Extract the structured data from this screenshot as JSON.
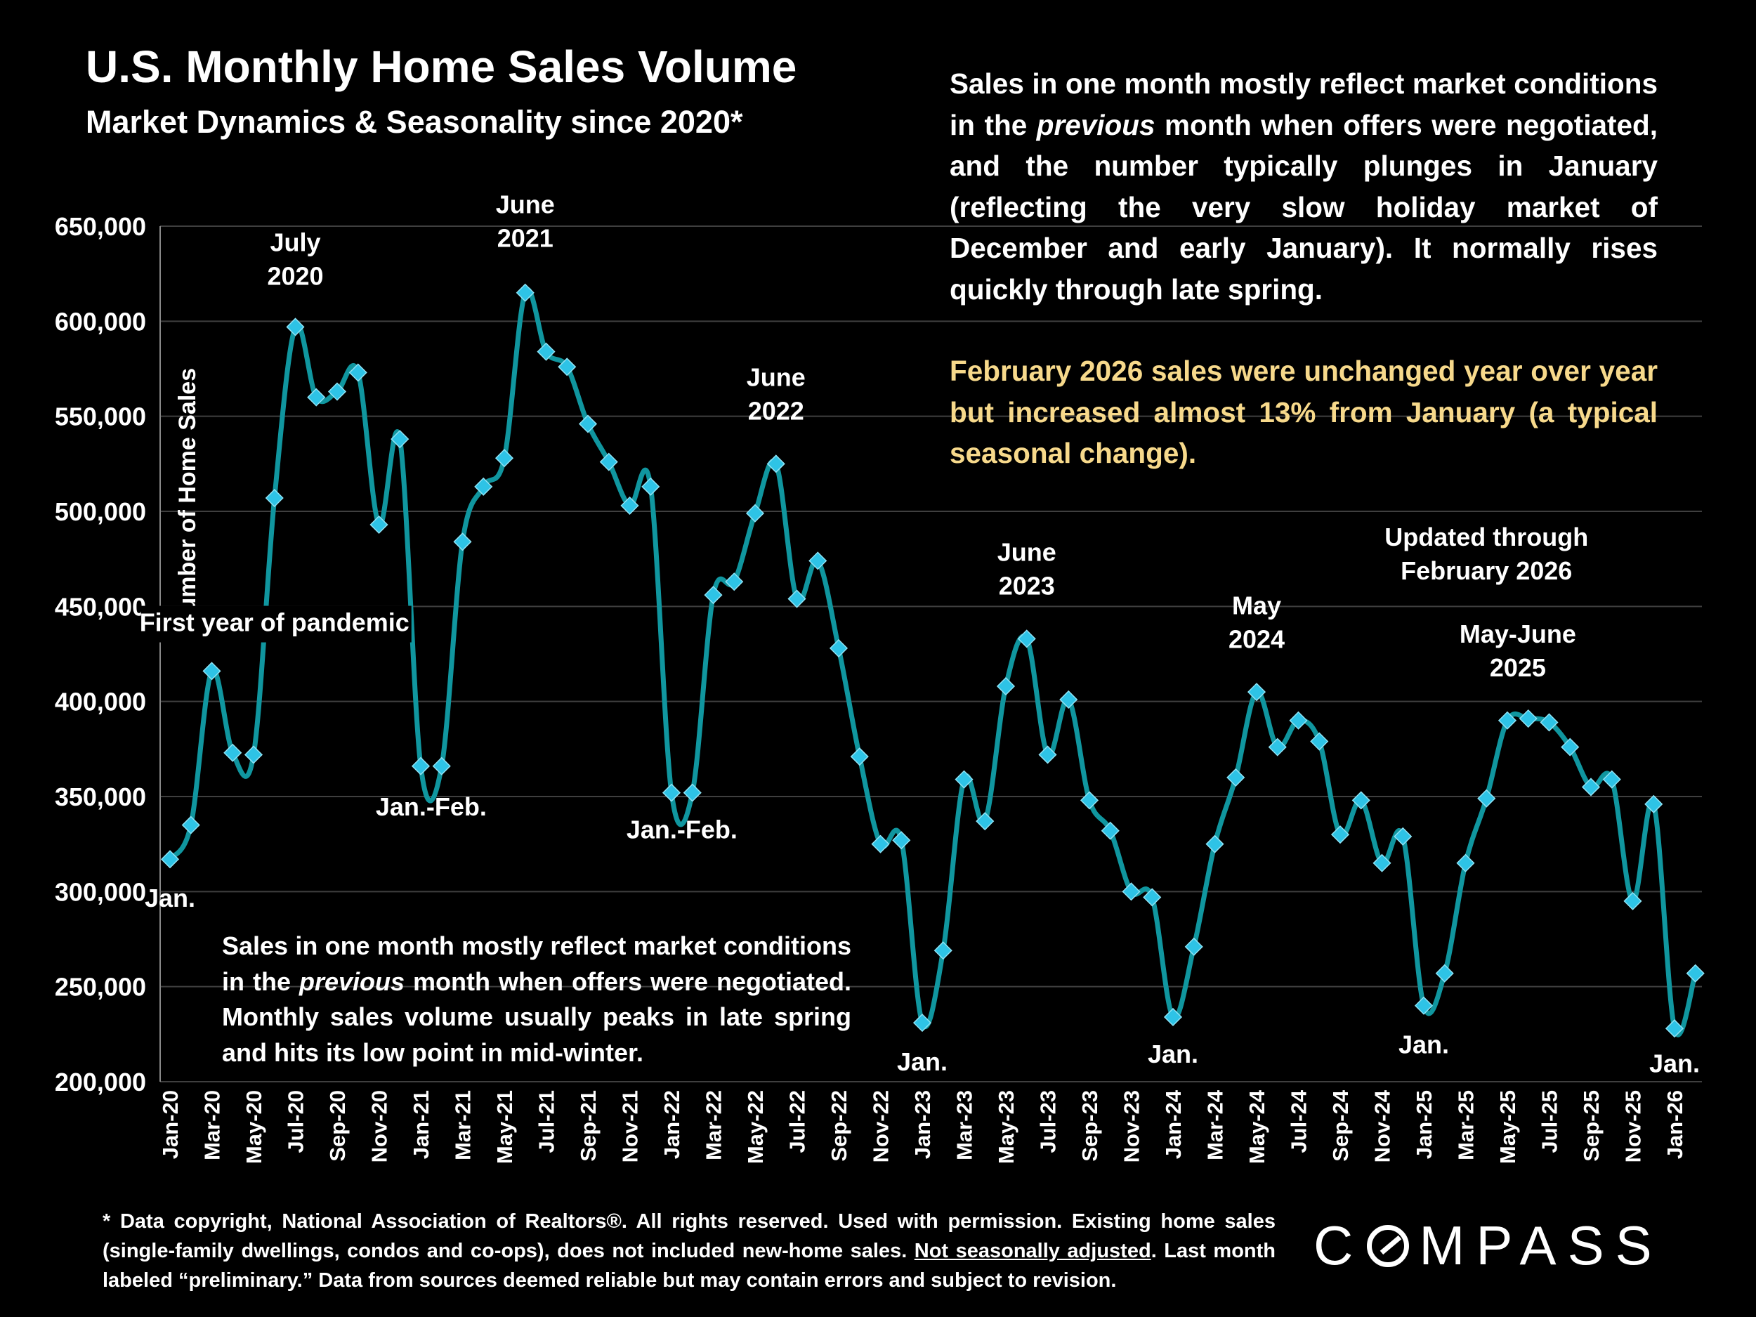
{
  "header": {
    "title": "U.S. Monthly Home Sales Volume",
    "subtitle": "Market Dynamics & Seasonality since 2020*"
  },
  "commentary": {
    "part1": "Sales in one month mostly reflect market conditions in the ",
    "part1_italic": "previous",
    "part1_end": " month when offers were negotiated, and the number typically plunges in January (reflecting the very slow holiday market of December and early January). It normally rises quickly through late spring.",
    "highlight": "February 2026 sales were unchanged year over year but increased almost 13% from January (a typical seasonal change)."
  },
  "note": {
    "part1": "Sales in one month mostly reflect market conditions in the ",
    "italic": "previous",
    "part2": " month when offers were negotiated. Monthly sales volume usually peaks in late spring and hits its low point in mid-winter."
  },
  "footnote": {
    "part1": "* Data copyright, National Association of Realtors®. All rights reserved. Used with permission. Existing home sales (single-family dwellings, condos and co-ops), does not included new-home sales. ",
    "underlined": "Not seasonally adjusted",
    "part2": ". Last month labeled “preliminary.” Data from sources deemed reliable but may contain errors and subject to revision."
  },
  "logo": {
    "pre": "C",
    "post": "MPASS"
  },
  "colors": {
    "line": "#10969f",
    "marker": "#2ec3e6",
    "grid": "#3f3f3f",
    "highlight": "#f7d98b"
  },
  "chart_data": {
    "type": "line",
    "title": "U.S. Monthly Home Sales Volume",
    "ylabel": "Number of Home Sales",
    "xlabel": "",
    "ylim": [
      200000,
      650000
    ],
    "y_ticks": [
      200000,
      250000,
      300000,
      350000,
      400000,
      450000,
      500000,
      550000,
      600000,
      650000
    ],
    "y_tick_labels": [
      "200,000",
      "250,000",
      "300,000",
      "350,000",
      "400,000",
      "450,000",
      "500,000",
      "550,000",
      "600,000",
      "650,000"
    ],
    "x": [
      "Jan-20",
      "Feb-20",
      "Mar-20",
      "Apr-20",
      "May-20",
      "Jun-20",
      "Jul-20",
      "Aug-20",
      "Sep-20",
      "Oct-20",
      "Nov-20",
      "Dec-20",
      "Jan-21",
      "Feb-21",
      "Mar-21",
      "Apr-21",
      "May-21",
      "Jun-21",
      "Jul-21",
      "Aug-21",
      "Sep-21",
      "Oct-21",
      "Nov-21",
      "Dec-21",
      "Jan-22",
      "Feb-22",
      "Mar-22",
      "Apr-22",
      "May-22",
      "Jun-22",
      "Jul-22",
      "Aug-22",
      "Sep-22",
      "Oct-22",
      "Nov-22",
      "Dec-22",
      "Jan-23",
      "Feb-23",
      "Mar-23",
      "Apr-23",
      "May-23",
      "Jun-23",
      "Jul-23",
      "Aug-23",
      "Sep-23",
      "Oct-23",
      "Nov-23",
      "Dec-23",
      "Jan-24",
      "Feb-24",
      "Mar-24",
      "Apr-24",
      "May-24",
      "Jun-24",
      "Jul-24",
      "Aug-24",
      "Sep-24",
      "Oct-24",
      "Nov-24",
      "Dec-24",
      "Jan-25",
      "Feb-25",
      "Mar-25",
      "Apr-25",
      "May-25",
      "Jun-25",
      "Jul-25",
      "Aug-25",
      "Sep-25",
      "Oct-25",
      "Nov-25",
      "Dec-25",
      "Jan-26",
      "Feb-26"
    ],
    "x_tick_labels": [
      "Jan-20",
      "Mar-20",
      "May-20",
      "Jul-20",
      "Sep-20",
      "Nov-20",
      "Jan-21",
      "Mar-21",
      "May-21",
      "Jul-21",
      "Sep-21",
      "Nov-21",
      "Jan-22",
      "Mar-22",
      "May-22",
      "Jul-22",
      "Sep-22",
      "Nov-22",
      "Jan-23",
      "Mar-23",
      "May-23",
      "Jul-23",
      "Sep-23",
      "Nov-23",
      "Jan-24",
      "Mar-24",
      "May-24",
      "Jul-24",
      "Sep-24",
      "Nov-24",
      "Jan-25",
      "Mar-25",
      "May-25",
      "Jul-25",
      "Sep-25",
      "Nov-25",
      "Jan-26"
    ],
    "series": [
      {
        "name": "Monthly Home Sales",
        "values": [
          317000,
          335000,
          416000,
          373000,
          372000,
          507000,
          597000,
          560000,
          563000,
          573000,
          493000,
          538000,
          366000,
          366000,
          484000,
          513000,
          528000,
          615000,
          584000,
          576000,
          546000,
          526000,
          503000,
          513000,
          352000,
          352000,
          456000,
          463000,
          499000,
          525000,
          454000,
          474000,
          428000,
          371000,
          325000,
          327000,
          231000,
          269000,
          359000,
          337000,
          408000,
          433000,
          372000,
          401000,
          348000,
          332000,
          300000,
          297000,
          234000,
          271000,
          325000,
          360000,
          405000,
          376000,
          390000,
          379000,
          330000,
          348000,
          315000,
          329000,
          240000,
          257000,
          315000,
          349000,
          390000,
          391000,
          389000,
          376000,
          355000,
          359000,
          295000,
          346000,
          228000,
          257000
        ]
      }
    ],
    "annotations": [
      {
        "text": "Jan.",
        "index": 0,
        "value": 292000
      },
      {
        "text": "July\n2020",
        "index": 6,
        "value": 628000
      },
      {
        "text": "First year of pandemic",
        "index": 5,
        "value": 437000
      },
      {
        "text": "Jan.-Feb.",
        "index": 12.5,
        "value": 340000
      },
      {
        "text": "June\n2021",
        "index": 17,
        "value": 648000
      },
      {
        "text": "Jan.-Feb.",
        "index": 24.5,
        "value": 328000
      },
      {
        "text": "June\n2022",
        "index": 29,
        "value": 557000
      },
      {
        "text": "Jan.",
        "index": 36,
        "value": 206000
      },
      {
        "text": "June\n2023",
        "index": 41,
        "value": 465000
      },
      {
        "text": "Jan.",
        "index": 48,
        "value": 210000
      },
      {
        "text": "May\n2024",
        "index": 52,
        "value": 437000
      },
      {
        "text": "Updated through\nFebruary 2026",
        "index": 63,
        "value": 473000
      },
      {
        "text": "Jan.",
        "index": 60,
        "value": 215000
      },
      {
        "text": "May-June\n2025",
        "index": 64.5,
        "value": 422000
      },
      {
        "text": "Jan.",
        "index": 72,
        "value": 205000
      }
    ]
  }
}
